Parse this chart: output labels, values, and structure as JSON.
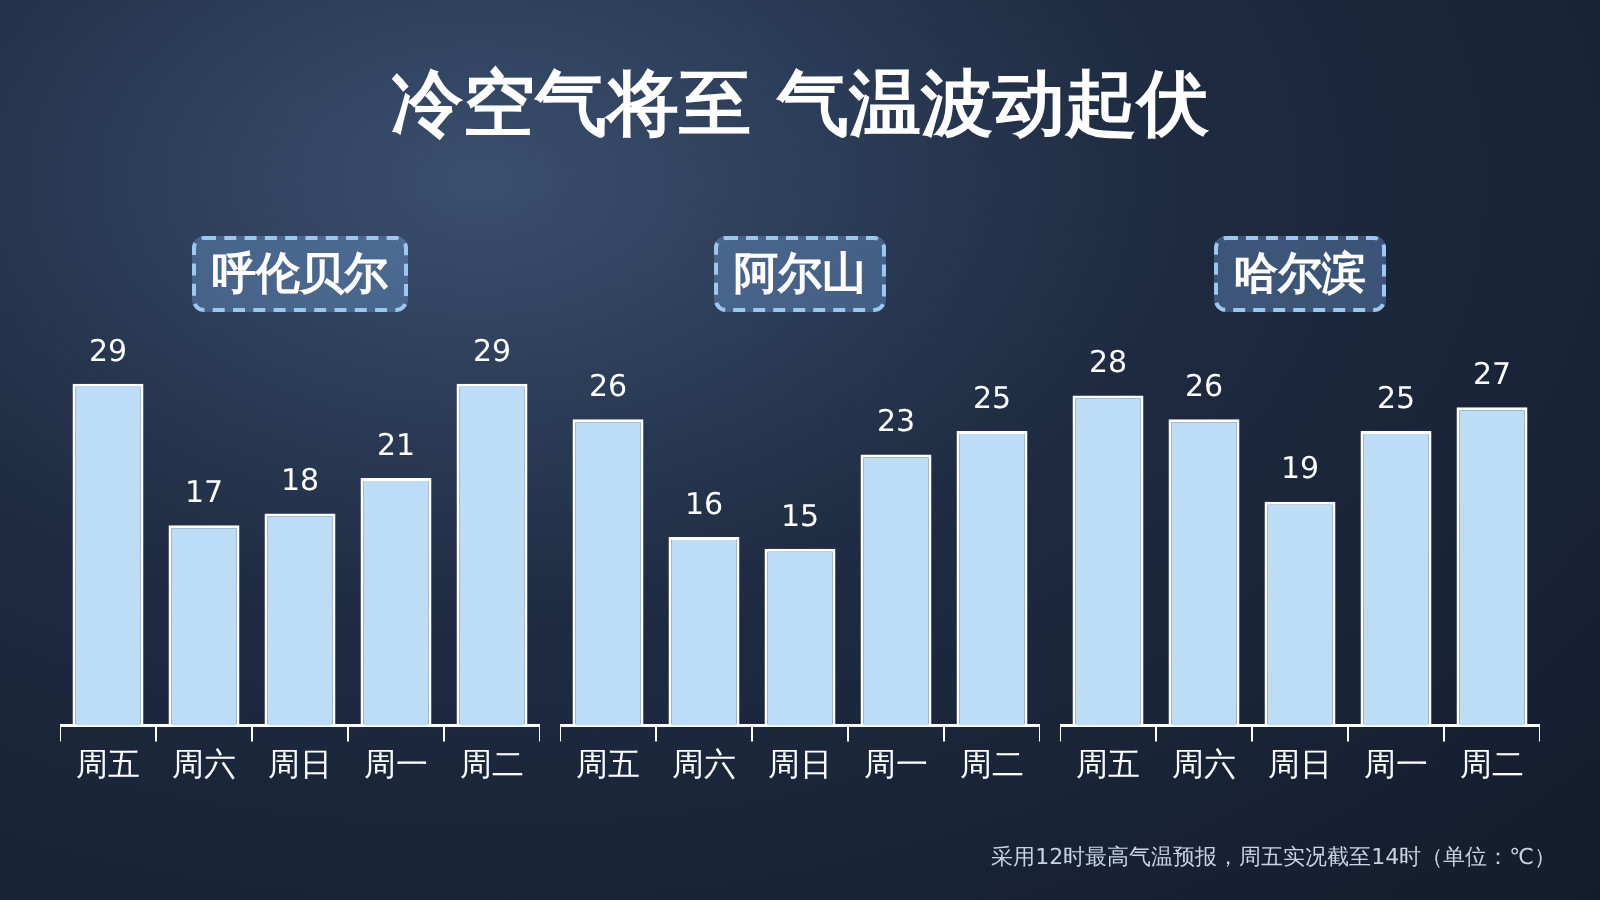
{
  "chart_data": [
    {
      "type": "other",
      "title": "冷空气将至  气温波动起伏",
      "annotations": [
        "采用12时最高气温预报，周五实况截至14时（单位：℃）"
      ]
    },
    {
      "type": "bar",
      "title": "呼伦贝尔",
      "categories": [
        "周五",
        "周六",
        "周日",
        "周一",
        "周二"
      ],
      "values": [
        29,
        17,
        18,
        21,
        29
      ],
      "color": "#bcdcf8",
      "data_labels": true
    },
    {
      "type": "bar",
      "title": "阿尔山",
      "categories": [
        "周五",
        "周六",
        "周日",
        "周一",
        "周二"
      ],
      "values": [
        26,
        16,
        15,
        23,
        25
      ],
      "color": "#bcdcf8",
      "data_labels": true
    },
    {
      "type": "bar",
      "title": "哈尔滨",
      "categories": [
        "周五",
        "周六",
        "周日",
        "周一",
        "周二"
      ],
      "values": [
        28,
        26,
        19,
        25,
        27
      ],
      "color": "#bcdcf8",
      "data_labels": true
    }
  ]
}
